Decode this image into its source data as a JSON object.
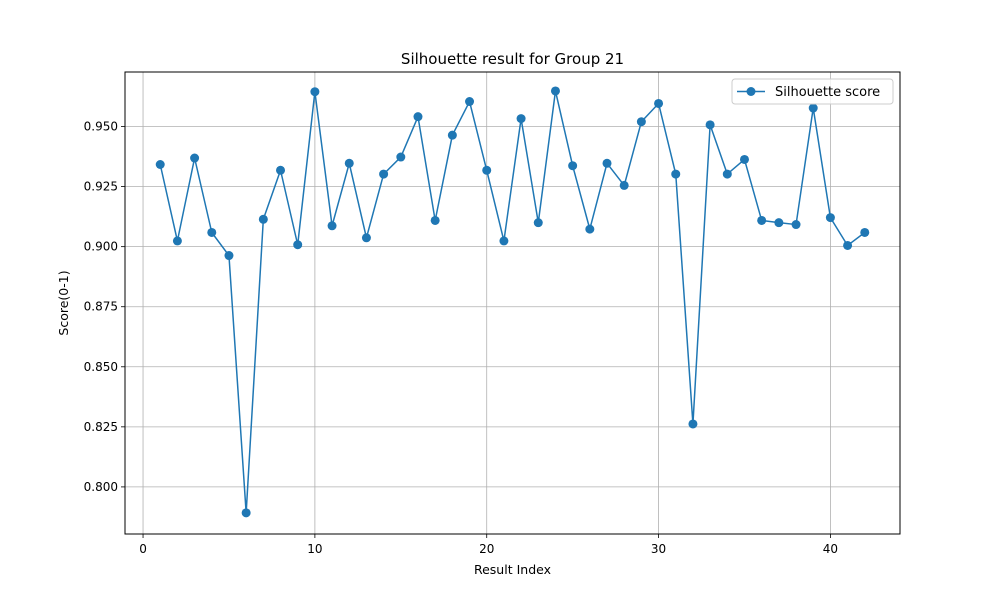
{
  "chart_data": {
    "type": "line",
    "title": "Silhouette result for Group 21",
    "xlabel": "Result Index",
    "ylabel": "Score(0-1)",
    "xlim": [
      -1.05,
      44.05
    ],
    "ylim": [
      0.7804,
      0.9727
    ],
    "xticks": [
      0,
      10,
      20,
      30,
      40
    ],
    "yticks": [
      0.8,
      0.825,
      0.85,
      0.875,
      0.9,
      0.925,
      0.95
    ],
    "grid": true,
    "legend": "top-right",
    "series": [
      {
        "name": "Silhouette score",
        "color": "#1f77b4",
        "marker": "circle",
        "x": [
          1,
          2,
          3,
          4,
          5,
          6,
          7,
          8,
          9,
          10,
          11,
          12,
          13,
          14,
          15,
          16,
          17,
          18,
          19,
          20,
          21,
          22,
          23,
          24,
          25,
          26,
          27,
          28,
          29,
          30,
          31,
          32,
          33,
          34,
          35,
          36,
          37,
          38,
          39,
          40,
          41,
          42
        ],
        "values": [
          0.9342,
          0.9024,
          0.9369,
          0.9059,
          0.8963,
          0.7892,
          0.9114,
          0.9318,
          0.9008,
          0.9645,
          0.9087,
          0.9347,
          0.9037,
          0.9302,
          0.9373,
          0.9541,
          0.9109,
          0.9464,
          0.9604,
          0.9318,
          0.9024,
          0.9533,
          0.91,
          0.9648,
          0.9337,
          0.9073,
          0.9347,
          0.9255,
          0.952,
          0.9596,
          0.9302,
          0.8262,
          0.9507,
          0.9302,
          0.9363,
          0.9109,
          0.91,
          0.9092,
          0.9577,
          0.9121,
          0.9005,
          0.9059
        ]
      }
    ]
  }
}
